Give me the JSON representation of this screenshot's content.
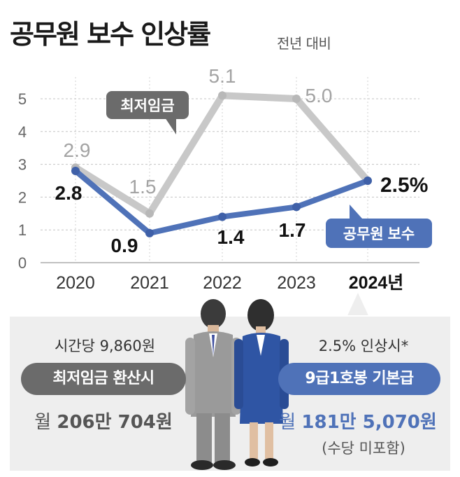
{
  "title": "공무원 보수 인상률",
  "subtitle": "전년 대비",
  "chart_data": {
    "type": "line",
    "x": [
      "2020",
      "2021",
      "2022",
      "2023",
      "2024년"
    ],
    "ylim": [
      0,
      5
    ],
    "y_ticks": [
      "0",
      "1",
      "2",
      "3",
      "4",
      "5"
    ],
    "grid": true,
    "series": [
      {
        "name": "최저임금",
        "color": "#c8c8c8",
        "values": [
          2.9,
          1.5,
          5.1,
          5.0,
          2.5
        ],
        "labels": [
          "2.9",
          "1.5",
          "5.1",
          "5.0",
          ""
        ]
      },
      {
        "name": "공무원 보수",
        "color": "#4f72b8",
        "values": [
          2.8,
          0.9,
          1.4,
          1.7,
          2.5
        ],
        "labels": [
          "2.8",
          "0.9",
          "1.4",
          "1.7",
          "2.5%"
        ]
      }
    ]
  },
  "left_panel": {
    "hourly": "시간당 9,860원",
    "pill": "최저임금 환산시",
    "monthly_prefix": "월",
    "monthly_value": "206만 704원"
  },
  "right_panel": {
    "condition": "2.5% 인상시*",
    "pill": "9급1호봉 기본급",
    "monthly_prefix": "월",
    "monthly_value": "181만 5,070원",
    "note": "(수당 미포함)"
  },
  "colors": {
    "blue": "#4f72b8",
    "gray_line": "#c8c8c8",
    "gray_pill": "#6b6b6b",
    "panel_bg": "#eeeeee"
  }
}
